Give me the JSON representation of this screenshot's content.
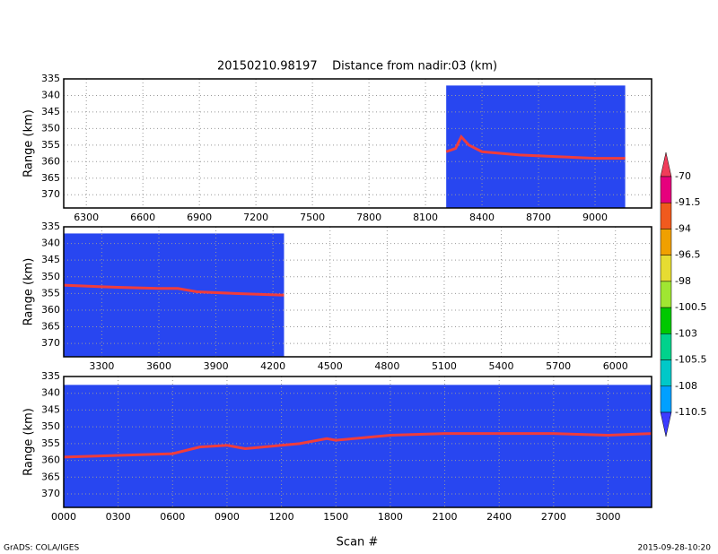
{
  "title": "20150210.98197    Distance from nadir:03 (km)",
  "xlabel": "Scan #",
  "footer_left": "GrADS: COLA/IGES",
  "footer_right": "2015-09-28-10:20",
  "colorbar": {
    "levels": [
      -70,
      -91.5,
      -94,
      -96.5,
      -98,
      -100.5,
      -103,
      -105.5,
      -108,
      -110.5
    ],
    "colors": [
      "#f03c5a",
      "#e6007d",
      "#f05a1e",
      "#f0a000",
      "#e6dc32",
      "#a0e632",
      "#00c800",
      "#00d28c",
      "#00c8c8",
      "#00a0ff",
      "#1e6eff",
      "#3c3cff"
    ]
  },
  "chart_data": [
    {
      "type": "line",
      "ylabel": "Range (km)",
      "xlim": [
        6180,
        9300
      ],
      "ylim": [
        335,
        374
      ],
      "y_reversed": true,
      "grid": true,
      "xticks": [
        6300,
        6600,
        6900,
        7200,
        7500,
        7800,
        8100,
        8400,
        8700,
        9000
      ],
      "yticks": [
        335,
        340,
        345,
        350,
        355,
        360,
        365,
        370
      ],
      "coverage": {
        "x": [
          8210,
          9160
        ],
        "y": [
          337,
          374
        ],
        "color": "#2846f0"
      },
      "series": [
        {
          "color": "#f03c3c",
          "x": [
            8210,
            8260,
            8290,
            8330,
            8400,
            8600,
            8800,
            9000,
            9160
          ],
          "values": [
            357,
            356,
            352.5,
            355,
            357,
            358,
            358.5,
            359,
            359
          ]
        }
      ]
    },
    {
      "type": "line",
      "ylabel": "Range (km)",
      "xlim": [
        3100,
        6190
      ],
      "ylim": [
        335,
        374
      ],
      "y_reversed": true,
      "grid": true,
      "xticks": [
        3300,
        3600,
        3900,
        4200,
        4500,
        4800,
        5100,
        5400,
        5700,
        6000
      ],
      "yticks": [
        335,
        340,
        345,
        350,
        355,
        360,
        365,
        370
      ],
      "coverage": {
        "x": [
          3100,
          4258
        ],
        "y": [
          337,
          374
        ],
        "color": "#2846f0"
      },
      "series": [
        {
          "color": "#f03c3c",
          "x": [
            3100,
            3300,
            3600,
            3700,
            3800,
            4000,
            4258
          ],
          "values": [
            352.5,
            353,
            353.5,
            353.5,
            354.5,
            355,
            355.5
          ]
        }
      ]
    },
    {
      "type": "line",
      "ylabel": "Range (km)",
      "xlim": [
        0,
        3240
      ],
      "ylim": [
        335,
        374
      ],
      "y_reversed": true,
      "grid": true,
      "xticks": [
        {
          "value": 0,
          "label": "0000"
        },
        {
          "value": 300,
          "label": "0300"
        },
        {
          "value": 600,
          "label": "0600"
        },
        {
          "value": 900,
          "label": "0900"
        },
        1200,
        1500,
        1800,
        2100,
        2400,
        2700,
        3000
      ],
      "yticks": [
        335,
        340,
        345,
        350,
        355,
        360,
        365,
        370
      ],
      "coverage": {
        "x": [
          0,
          3240
        ],
        "y": [
          337.5,
          374
        ],
        "color": "#2846f0"
      },
      "series": [
        {
          "color": "#f03c3c",
          "x": [
            0,
            300,
            600,
            750,
            900,
            1000,
            1300,
            1450,
            1500,
            1800,
            2100,
            2700,
            3000,
            3240
          ],
          "values": [
            359,
            358.5,
            358,
            356,
            355.5,
            356.5,
            355,
            353.5,
            354,
            352.5,
            352,
            352,
            352.5,
            352
          ]
        }
      ]
    }
  ]
}
